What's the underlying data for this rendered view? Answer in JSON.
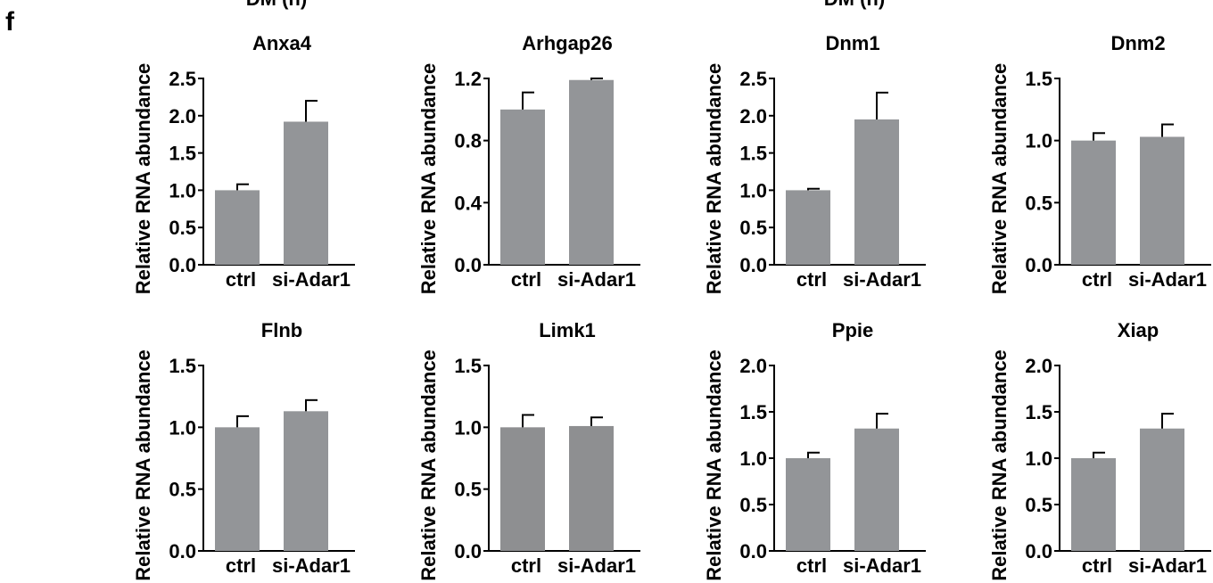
{
  "figure": {
    "panel_label": "f",
    "cropped_top_labels": [
      "DM (h)",
      "DM (h)"
    ]
  },
  "chart_data": [
    {
      "type": "bar",
      "title": "Anxa4",
      "ylabel": "Relative RNA abundance",
      "categories": [
        "ctrl",
        "si-Adar1"
      ],
      "values": [
        1.0,
        1.92
      ],
      "errors": [
        0.08,
        0.28
      ],
      "ylim": [
        0,
        2.5
      ],
      "yticks": [
        "0.0",
        "0.5",
        "1.0",
        "1.5",
        "2.0",
        "2.5"
      ],
      "bar_color": "#939598"
    },
    {
      "type": "bar",
      "title": "Arhgap26",
      "ylabel": "Relative RNA abundance",
      "categories": [
        "ctrl",
        "si-Adar1"
      ],
      "values": [
        1.0,
        1.19
      ],
      "errors": [
        0.11,
        0.01
      ],
      "ylim": [
        0,
        1.2
      ],
      "yticks": [
        "0.0",
        "0.4",
        "0.8",
        "1.2"
      ],
      "bar_color": "#939598"
    },
    {
      "type": "bar",
      "title": "Dnm1",
      "ylabel": "Relative RNA abundance",
      "categories": [
        "ctrl",
        "si-Adar1"
      ],
      "values": [
        1.0,
        1.95
      ],
      "errors": [
        0.02,
        0.36
      ],
      "ylim": [
        0,
        2.5
      ],
      "yticks": [
        "0.0",
        "0.5",
        "1.0",
        "1.5",
        "2.0",
        "2.5"
      ],
      "bar_color": "#939598"
    },
    {
      "type": "bar",
      "title": "Dnm2",
      "ylabel": "Relative RNA abundance",
      "categories": [
        "ctrl",
        "si-Adar1"
      ],
      "values": [
        1.0,
        1.03
      ],
      "errors": [
        0.06,
        0.1
      ],
      "ylim": [
        0,
        1.5
      ],
      "yticks": [
        "0.0",
        "0.5",
        "1.0",
        "1.5"
      ],
      "bar_color": "#939598"
    },
    {
      "type": "bar",
      "title": "Flnb",
      "ylabel": "Relative RNA abundance",
      "categories": [
        "ctrl",
        "si-Adar1"
      ],
      "values": [
        1.0,
        1.13
      ],
      "errors": [
        0.09,
        0.09
      ],
      "ylim": [
        0,
        1.5
      ],
      "yticks": [
        "0.0",
        "0.5",
        "1.0",
        "1.5"
      ],
      "bar_color": "#939598"
    },
    {
      "type": "bar",
      "title": "Limk1",
      "ylabel": "Relative RNA abundance",
      "categories": [
        "ctrl",
        "si-Adar1"
      ],
      "values": [
        1.0,
        1.01
      ],
      "errors": [
        0.1,
        0.07
      ],
      "ylim": [
        0,
        1.5
      ],
      "yticks": [
        "0.0",
        "0.5",
        "1.0",
        "1.5"
      ],
      "bar_color": "#8e8f91"
    },
    {
      "type": "bar",
      "title": "Ppie",
      "ylabel": "Relative RNA abundance",
      "categories": [
        "ctrl",
        "si-Adar1"
      ],
      "values": [
        1.0,
        1.32
      ],
      "errors": [
        0.06,
        0.16
      ],
      "ylim": [
        0,
        2.0
      ],
      "yticks": [
        "0.0",
        "0.5",
        "1.0",
        "1.5",
        "2.0"
      ],
      "bar_color": "#939598"
    },
    {
      "type": "bar",
      "title": "Xiap",
      "ylabel": "Relative RNA abundance",
      "categories": [
        "ctrl",
        "si-Adar1"
      ],
      "values": [
        1.0,
        1.32
      ],
      "errors": [
        0.06,
        0.16
      ],
      "ylim": [
        0,
        2.0
      ],
      "yticks": [
        "0.0",
        "0.5",
        "1.0",
        "1.5",
        "2.0"
      ],
      "bar_color": "#939598"
    }
  ]
}
